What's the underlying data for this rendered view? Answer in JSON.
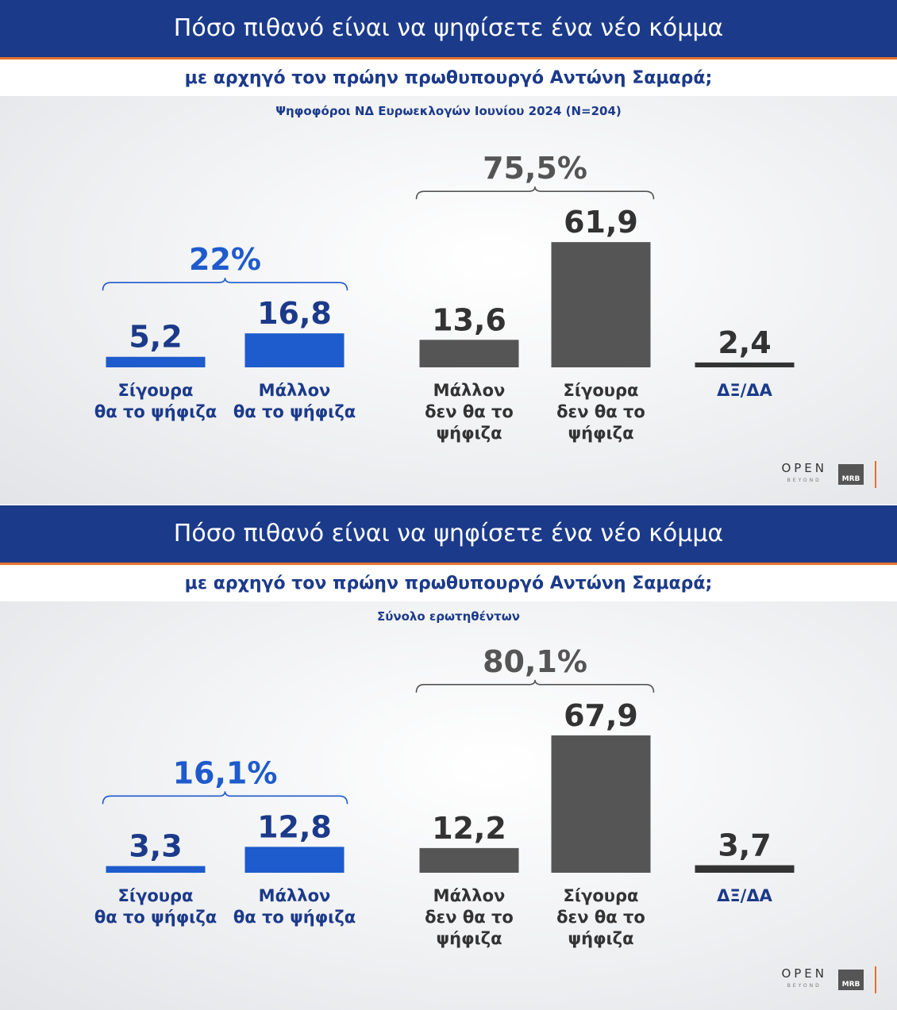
{
  "colors": {
    "title_bg": "#1b3a8a",
    "title_rule": "#e4712a",
    "blue_bar": "#1e5bcc",
    "blue_text": "#1b3a8a",
    "gray_bar": "#555555",
    "gray_text": "#333333",
    "bracket_gray": "#555555"
  },
  "logos": {
    "open": "OPEN",
    "open_sub": "BEYOND",
    "mrb": "MRB"
  },
  "panels": [
    {
      "title": "Πόσο πιθανό είναι να ψηφίσετε ένα νέο κόμμα",
      "subtitle": "με αρχηγό τον πρώην πρωθυπουργό Αντώνη Σαμαρά;",
      "note": "Ψηφοφόροι ΝΔ Ευρωεκλογών Ιουνίου 2024 (N=204)"
    },
    {
      "title": "Πόσο πιθανό είναι να ψηφίσετε ένα νέο κόμμα",
      "subtitle": "με αρχηγό τον πρώην πρωθυπουργό Αντώνη Σαμαρά;",
      "note": "Σύνολο ερωτηθέντων"
    }
  ],
  "chart_data": [
    {
      "type": "bar",
      "title": "Πόσο πιθανό είναι να ψηφίσετε ένα νέο κόμμα με αρχηγό τον πρώην πρωθυπουργό Αντώνη Σαμαρά;",
      "subtitle": "Ψηφοφόροι ΝΔ Ευρωεκλογών Ιουνίου 2024 (N=204)",
      "categories": [
        [
          "Σίγουρα",
          "θα το ψήφιζα"
        ],
        [
          "Μάλλον",
          "θα το ψήφιζα"
        ],
        [
          "Μάλλον",
          "δεν θα το",
          "ψήφιζα"
        ],
        [
          "Σίγουρα",
          "δεν θα το",
          "ψήφιζα"
        ],
        [
          "ΔΞ/ΔΑ"
        ]
      ],
      "values": [
        5.2,
        16.8,
        13.6,
        61.9,
        2.4
      ],
      "value_labels": [
        "5,2",
        "16,8",
        "13,6",
        "61,9",
        "2,4"
      ],
      "bar_colors": [
        "#1e5bcc",
        "#1e5bcc",
        "#555555",
        "#555555",
        "#333333"
      ],
      "groups": [
        {
          "label": "22%",
          "from": 0,
          "to": 1,
          "color": "#1e5bcc"
        },
        {
          "label": "75,5%",
          "from": 2,
          "to": 3,
          "color": "#555555"
        }
      ],
      "ylim": [
        0,
        100
      ],
      "grid": false
    },
    {
      "type": "bar",
      "title": "Πόσο πιθανό είναι να ψηφίσετε ένα νέο κόμμα με αρχηγό τον πρώην πρωθυπουργό Αντώνη Σαμαρά;",
      "subtitle": "Σύνολο ερωτηθέντων",
      "categories": [
        [
          "Σίγουρα",
          "θα το ψήφιζα"
        ],
        [
          "Μάλλον",
          "θα το ψήφιζα"
        ],
        [
          "Μάλλον",
          "δεν θα το",
          "ψήφιζα"
        ],
        [
          "Σίγουρα",
          "δεν θα το",
          "ψήφιζα"
        ],
        [
          "ΔΞ/ΔΑ"
        ]
      ],
      "values": [
        3.3,
        12.8,
        12.2,
        67.9,
        3.7
      ],
      "value_labels": [
        "3,3",
        "12,8",
        "12,2",
        "67,9",
        "3,7"
      ],
      "bar_colors": [
        "#1e5bcc",
        "#1e5bcc",
        "#555555",
        "#555555",
        "#333333"
      ],
      "groups": [
        {
          "label": "16,1%",
          "from": 0,
          "to": 1,
          "color": "#1e5bcc"
        },
        {
          "label": "80,1%",
          "from": 2,
          "to": 3,
          "color": "#555555"
        }
      ],
      "ylim": [
        0,
        100
      ],
      "grid": false
    }
  ]
}
